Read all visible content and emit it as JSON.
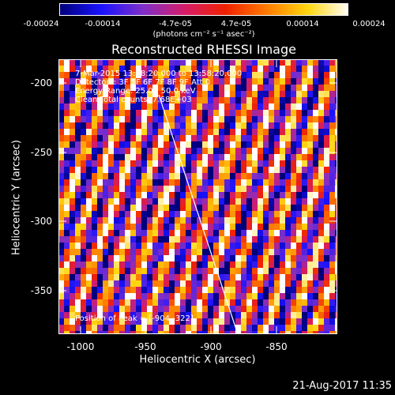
{
  "colorbar": {
    "tick_labels": [
      "-0.00024",
      "-0.00014",
      "-4.7e-05",
      "4.7e-05",
      "0.00014",
      "0.00024"
    ],
    "units": "(photons cm⁻² s⁻¹ asec⁻²)",
    "colormap": [
      "#00007a",
      "#1a12ff",
      "#7e2fc9",
      "#d51c6a",
      "#ef2000",
      "#ff7a00",
      "#ffd60f",
      "#ffffff"
    ]
  },
  "title": "Reconstructed RHESSI Image",
  "overlay": {
    "line1": "7-Mar-2015 13:48:20.000 to 13:58:20.000",
    "line2": "Detectors: 3F 5F 6F 7F 8F 9F  Att 0",
    "line3": "Energy Range: 25.0 - 50.0 keV",
    "line4": "Clean    Total counts: 7.68E+03",
    "peak": "Position of Peak = [-904,-322]"
  },
  "axes": {
    "xlabel": "Heliocentric X (arcsec)",
    "ylabel": "Heliocentric Y (arcsec)",
    "x_ticks": [
      "-1000",
      "-950",
      "-900",
      "-850"
    ],
    "y_ticks": [
      "-200",
      "-250",
      "-300",
      "-350"
    ]
  },
  "timestamp": "21-Aug-2017 11:35"
}
